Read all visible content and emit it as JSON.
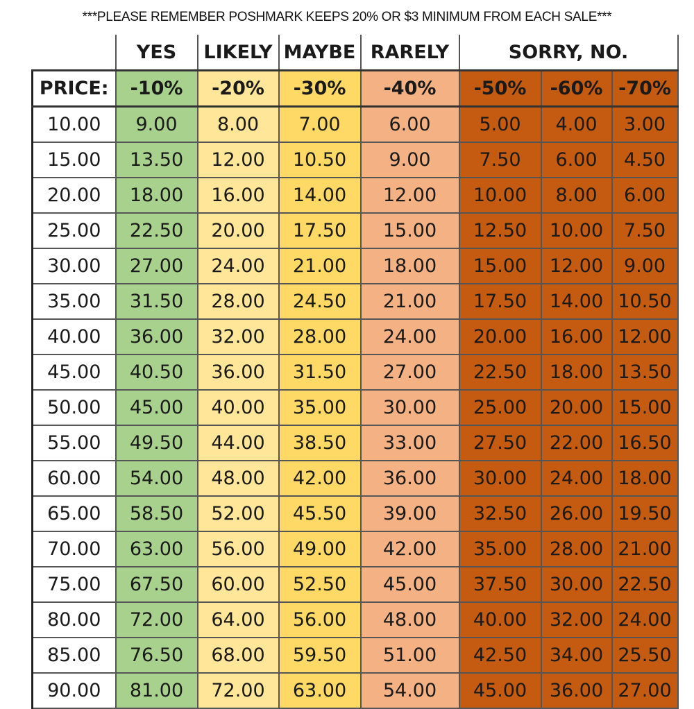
{
  "note": "***PLEASE REMEMBER POSHMARK KEEPS 20% OR $3 MINIMUM FROM EACH SALE***",
  "groups": [
    "YES",
    "LIKELY",
    "MAYBE",
    "RARELY",
    "SORRY, NO."
  ],
  "columns": [
    "PRICE:",
    "-10%",
    "-20%",
    "-30%",
    "-40%",
    "-50%",
    "-60%",
    "-70%"
  ],
  "colors": {
    "yes": "#a9d18e",
    "likely": "#ffe699",
    "maybe": "#ffd966",
    "rarely": "#f4b183",
    "sorry_no": "#c55a11"
  },
  "rows": [
    [
      "10.00",
      "9.00",
      "8.00",
      "7.00",
      "6.00",
      "5.00",
      "4.00",
      "3.00"
    ],
    [
      "15.00",
      "13.50",
      "12.00",
      "10.50",
      "9.00",
      "7.50",
      "6.00",
      "4.50"
    ],
    [
      "20.00",
      "18.00",
      "16.00",
      "14.00",
      "12.00",
      "10.00",
      "8.00",
      "6.00"
    ],
    [
      "25.00",
      "22.50",
      "20.00",
      "17.50",
      "15.00",
      "12.50",
      "10.00",
      "7.50"
    ],
    [
      "30.00",
      "27.00",
      "24.00",
      "21.00",
      "18.00",
      "15.00",
      "12.00",
      "9.00"
    ],
    [
      "35.00",
      "31.50",
      "28.00",
      "24.50",
      "21.00",
      "17.50",
      "14.00",
      "10.50"
    ],
    [
      "40.00",
      "36.00",
      "32.00",
      "28.00",
      "24.00",
      "20.00",
      "16.00",
      "12.00"
    ],
    [
      "45.00",
      "40.50",
      "36.00",
      "31.50",
      "27.00",
      "22.50",
      "18.00",
      "13.50"
    ],
    [
      "50.00",
      "45.00",
      "40.00",
      "35.00",
      "30.00",
      "25.00",
      "20.00",
      "15.00"
    ],
    [
      "55.00",
      "49.50",
      "44.00",
      "38.50",
      "33.00",
      "27.50",
      "22.00",
      "16.50"
    ],
    [
      "60.00",
      "54.00",
      "48.00",
      "42.00",
      "36.00",
      "30.00",
      "24.00",
      "18.00"
    ],
    [
      "65.00",
      "58.50",
      "52.00",
      "45.50",
      "39.00",
      "32.50",
      "26.00",
      "19.50"
    ],
    [
      "70.00",
      "63.00",
      "56.00",
      "49.00",
      "42.00",
      "35.00",
      "28.00",
      "21.00"
    ],
    [
      "75.00",
      "67.50",
      "60.00",
      "52.50",
      "45.00",
      "37.50",
      "30.00",
      "22.50"
    ],
    [
      "80.00",
      "72.00",
      "64.00",
      "56.00",
      "48.00",
      "40.00",
      "32.00",
      "24.00"
    ],
    [
      "85.00",
      "76.50",
      "68.00",
      "59.50",
      "51.00",
      "42.50",
      "34.00",
      "25.50"
    ],
    [
      "90.00",
      "81.00",
      "72.00",
      "63.00",
      "54.00",
      "45.00",
      "36.00",
      "27.00"
    ]
  ]
}
